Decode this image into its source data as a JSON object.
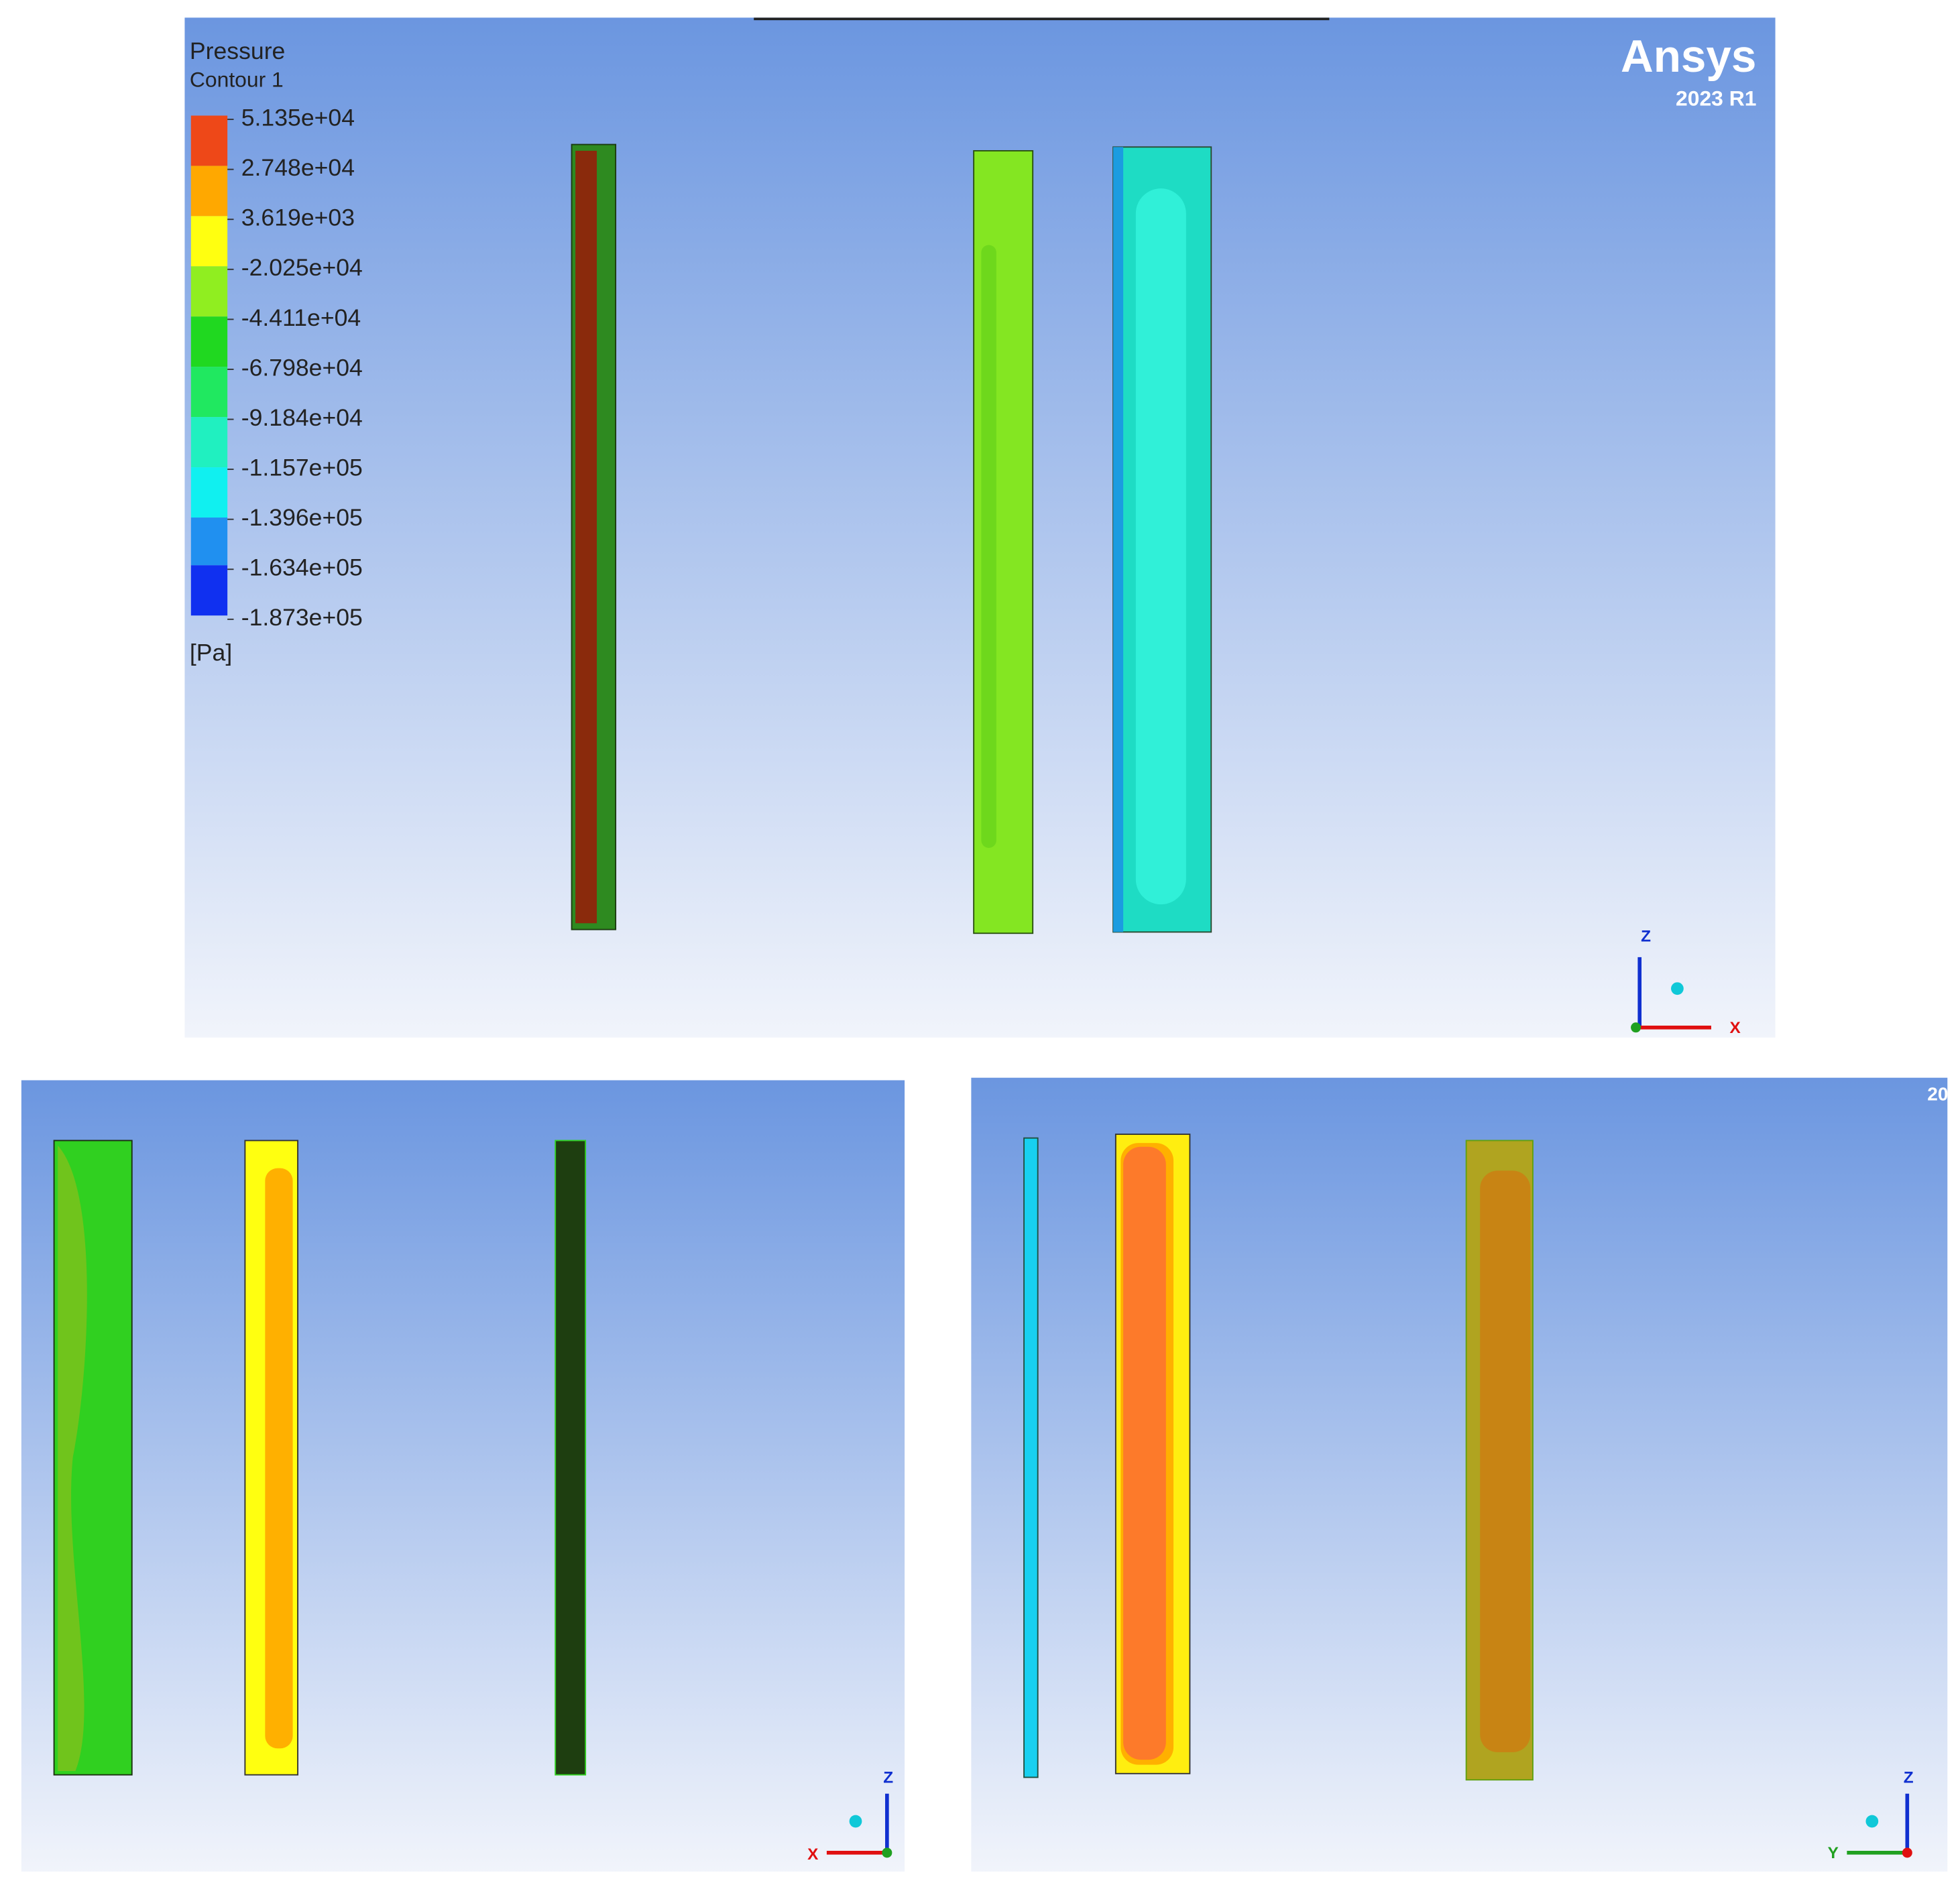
{
  "legend": {
    "title": "Pressure",
    "subtitle": "Contour 1",
    "labels": [
      "5.135e+04",
      "2.748e+04",
      "3.619e+03",
      "-2.025e+04",
      "-4.411e+04",
      "-6.798e+04",
      "-9.184e+04",
      "-1.157e+05",
      "-1.396e+05",
      "-1.634e+05",
      "-1.873e+05"
    ],
    "unit": "[Pa]"
  },
  "logo": {
    "name": "Ansys",
    "version": "2023 R1"
  },
  "views": [
    {
      "axes": [
        "Z",
        "X"
      ]
    },
    {
      "axes": [
        "Z",
        "X"
      ]
    },
    {
      "axes": [
        "Z",
        "Y"
      ],
      "corner_text": "20"
    }
  ]
}
